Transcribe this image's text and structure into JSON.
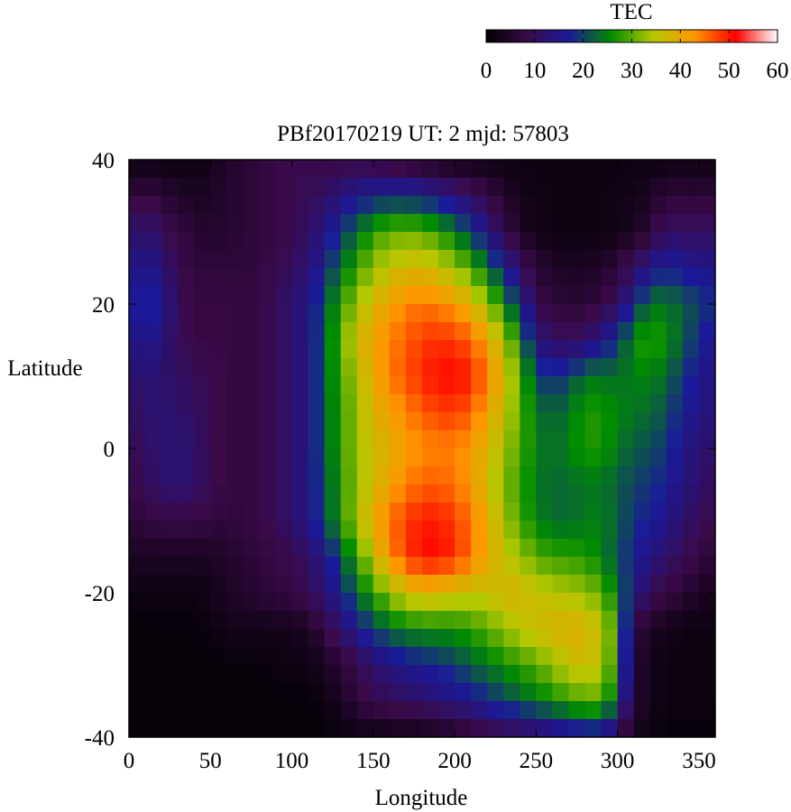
{
  "chart_data": {
    "type": "heatmap",
    "title": "PBf20170219  UT: 2  mjd: 57803",
    "xlabel": "Longitude",
    "ylabel": "Latitude",
    "xlim": [
      0,
      360
    ],
    "ylim": [
      -40,
      40
    ],
    "x_ticks": [
      "0",
      "50",
      "100",
      "150",
      "200",
      "250",
      "300",
      "350"
    ],
    "y_ticks": [
      "40",
      "20",
      "0",
      "-20",
      "-40"
    ],
    "colorbar": {
      "label": "TEC",
      "range": [
        0,
        60
      ],
      "ticks": [
        "0",
        "10",
        "20",
        "30",
        "40",
        "50",
        "60"
      ],
      "colors": [
        "#000000",
        "#3a0a4a",
        "#1a1a9a",
        "#008c00",
        "#b4c800",
        "#ff9600",
        "#ff0000",
        "#ffffff"
      ]
    },
    "grid": {
      "lon_step": 10,
      "lat_step": 2.5,
      "lon_centers": [
        0,
        10,
        20,
        30,
        40,
        50,
        60,
        70,
        80,
        90,
        100,
        110,
        120,
        130,
        140,
        150,
        160,
        170,
        180,
        190,
        200,
        210,
        220,
        230,
        240,
        250,
        260,
        270,
        280,
        290,
        300,
        310,
        320,
        330,
        340,
        350,
        360
      ],
      "lat_rows": [
        40,
        30,
        20,
        15,
        10,
        5,
        0,
        -5,
        -10,
        -15,
        -20,
        -25,
        -30,
        -35,
        -40
      ],
      "values": [
        [
          2,
          2,
          2,
          2,
          2,
          3,
          5,
          6,
          7,
          8,
          9,
          9,
          8,
          8,
          8,
          7,
          6,
          5,
          4,
          3,
          2,
          2,
          2,
          2,
          2,
          2,
          2,
          2,
          2,
          2,
          2,
          2,
          2,
          2,
          2,
          2,
          2
        ],
        [
          10,
          14,
          10,
          8,
          6,
          5,
          6,
          6,
          7,
          8,
          9,
          11,
          14,
          19,
          23,
          28,
          30,
          31,
          30,
          28,
          24,
          20,
          14,
          9,
          4,
          3,
          2,
          2,
          2,
          2,
          3,
          4,
          6,
          12,
          10,
          11,
          11
        ],
        [
          16,
          19,
          16,
          10,
          8,
          8,
          8,
          7,
          8,
          10,
          12,
          15,
          21,
          28,
          33,
          38,
          41,
          44,
          45,
          44,
          42,
          39,
          33,
          26,
          18,
          9,
          7,
          6,
          6,
          8,
          10,
          18,
          24,
          24,
          22,
          20,
          18
        ],
        [
          12,
          17,
          13,
          10,
          8,
          8,
          8,
          7,
          8,
          10,
          12,
          15,
          22,
          30,
          37,
          41,
          44,
          46,
          48,
          49,
          48,
          46,
          41,
          34,
          26,
          14,
          11,
          10,
          11,
          15,
          19,
          26,
          28,
          26,
          22,
          18,
          15
        ],
        [
          11,
          14,
          12,
          11,
          10,
          9,
          8,
          7,
          8,
          10,
          12,
          15,
          22,
          29,
          34,
          40,
          44,
          47,
          49,
          51,
          51,
          50,
          44,
          38,
          30,
          20,
          18,
          20,
          24,
          24,
          23,
          25,
          25,
          23,
          19,
          16,
          14
        ],
        [
          10,
          12,
          13,
          12,
          11,
          9,
          8,
          7,
          8,
          10,
          12,
          15,
          22,
          28,
          33,
          39,
          41,
          44,
          46,
          48,
          48,
          46,
          41,
          36,
          30,
          24,
          22,
          24,
          27,
          27,
          25,
          24,
          23,
          21,
          17,
          15,
          13
        ],
        [
          9,
          11,
          13,
          13,
          12,
          9,
          8,
          7,
          8,
          10,
          12,
          15,
          22,
          28,
          33,
          37,
          39,
          42,
          43,
          44,
          44,
          42,
          38,
          34,
          29,
          25,
          23,
          25,
          27,
          27,
          24,
          22,
          21,
          19,
          15,
          13,
          11
        ],
        [
          8,
          10,
          12,
          13,
          12,
          9,
          8,
          7,
          8,
          10,
          12,
          15,
          21,
          27,
          33,
          37,
          41,
          44,
          46,
          46,
          45,
          42,
          37,
          32,
          28,
          24,
          23,
          23,
          24,
          24,
          22,
          20,
          19,
          17,
          14,
          12,
          10
        ],
        [
          6,
          7,
          8,
          8,
          8,
          7,
          7,
          7,
          8,
          10,
          12,
          15,
          21,
          27,
          34,
          40,
          45,
          48,
          50,
          50,
          48,
          45,
          40,
          34,
          29,
          25,
          23,
          23,
          24,
          25,
          22,
          19,
          17,
          15,
          12,
          10,
          8
        ],
        [
          4,
          4,
          4,
          4,
          4,
          4,
          5,
          6,
          7,
          8,
          9,
          11,
          15,
          21,
          28,
          36,
          43,
          48,
          51,
          51,
          49,
          45,
          40,
          36,
          33,
          30,
          28,
          28,
          27,
          25,
          21,
          17,
          14,
          12,
          10,
          8,
          6
        ],
        [
          2,
          2,
          2,
          2,
          2,
          3,
          4,
          5,
          6,
          7,
          8,
          10,
          13,
          17,
          23,
          28,
          33,
          37,
          39,
          38,
          37,
          36,
          36,
          38,
          38,
          36,
          35,
          34,
          33,
          30,
          24,
          16,
          10,
          8,
          6,
          4,
          3
        ],
        [
          1,
          1,
          1,
          1,
          1,
          2,
          3,
          3,
          3,
          3,
          3,
          4,
          8,
          12,
          16,
          20,
          23,
          25,
          26,
          26,
          26,
          28,
          30,
          33,
          35,
          37,
          38,
          39,
          39,
          35,
          28,
          8,
          4,
          3,
          2,
          2,
          2
        ],
        [
          1,
          1,
          1,
          1,
          1,
          1,
          1,
          1,
          1,
          2,
          2,
          2,
          4,
          6,
          9,
          12,
          14,
          16,
          17,
          18,
          20,
          22,
          24,
          26,
          28,
          30,
          33,
          36,
          37,
          35,
          26,
          6,
          3,
          2,
          2,
          2,
          2
        ],
        [
          1,
          1,
          1,
          1,
          1,
          1,
          1,
          1,
          1,
          1,
          1,
          1,
          2,
          4,
          7,
          9,
          10,
          11,
          12,
          13,
          14,
          16,
          18,
          20,
          22,
          24,
          26,
          28,
          30,
          30,
          22,
          6,
          3,
          2,
          2,
          2,
          2
        ],
        [
          1,
          1,
          1,
          1,
          1,
          1,
          1,
          1,
          1,
          1,
          1,
          1,
          1,
          1,
          2,
          2,
          2,
          2,
          2,
          3,
          4,
          5,
          7,
          8,
          9,
          10,
          11,
          13,
          15,
          14,
          8,
          3,
          2,
          1,
          1,
          1,
          1
        ]
      ]
    }
  }
}
